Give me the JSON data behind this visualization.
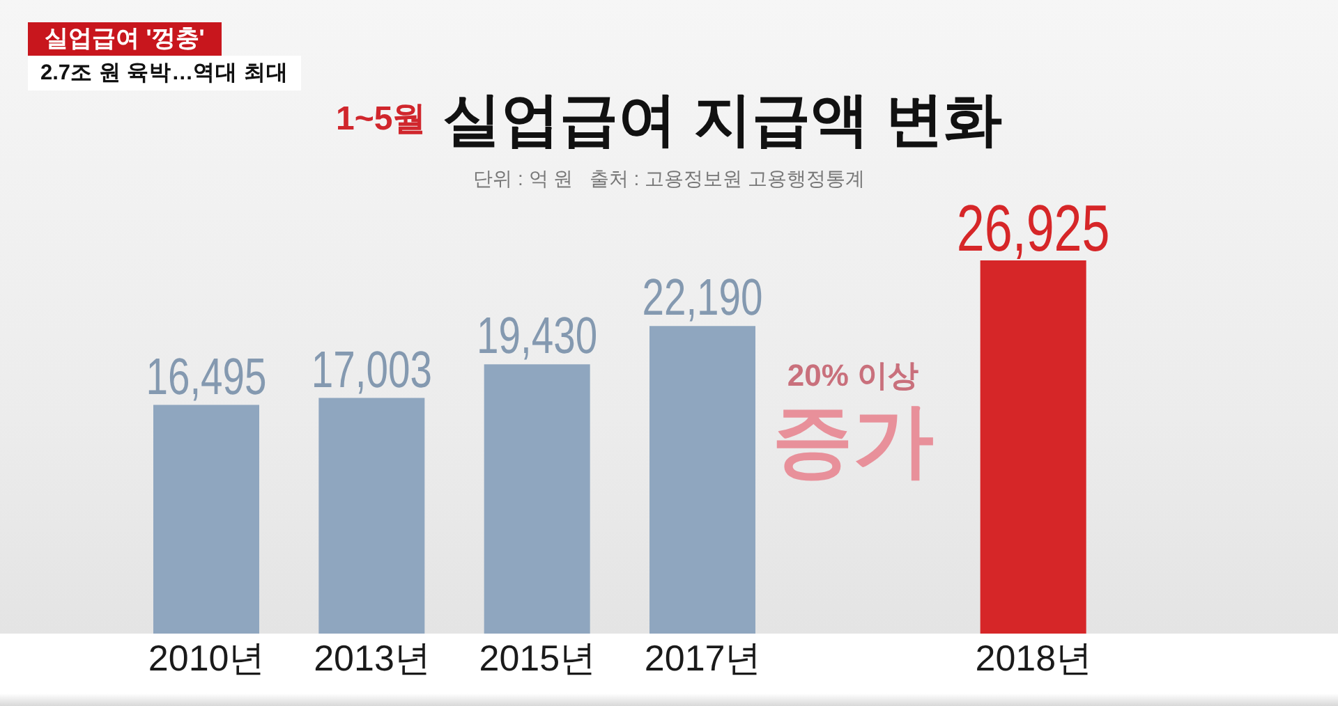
{
  "chart_data": {
    "type": "bar",
    "title": "1~5월 실업급여 지급액 변화",
    "subtitle": "단위 : 억 원   출처 : 고용정보원 고용행정통계",
    "categories": [
      "2010년",
      "2013년",
      "2015년",
      "2017년",
      null,
      "2018년"
    ],
    "values": [
      16495,
      17003,
      19430,
      22190,
      null,
      26925
    ],
    "value_labels": [
      "16,495",
      "17,003",
      "19,430",
      "22,190",
      null,
      "26,925"
    ],
    "colors": [
      "#8fa6bf",
      "#8fa6bf",
      "#8fa6bf",
      "#8fa6bf",
      null,
      "#d62628"
    ],
    "annotations": [
      "실업급여 '껑충'",
      "2.7조 원 육박…역대 최대",
      "20% 이상 증가"
    ]
  }
}
